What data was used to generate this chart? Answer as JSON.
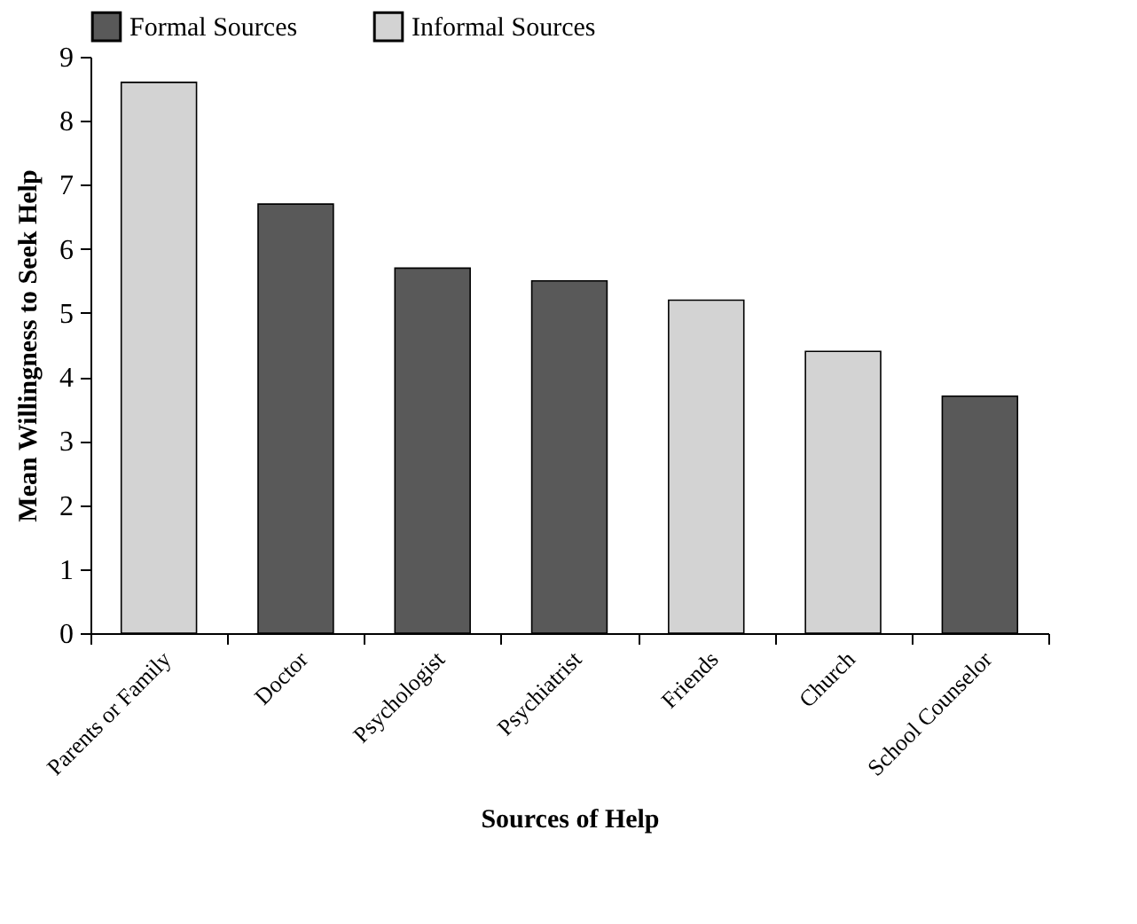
{
  "chart_data": {
    "type": "bar",
    "xlabel": "Sources of Help",
    "ylabel": "Mean Willingness to Seek Help",
    "categories": [
      "Parents or Family",
      "Doctor",
      "Psychologist",
      "Psychiatrist",
      "Friends",
      "Church",
      "School Counselor"
    ],
    "series": [
      {
        "name": "Formal Sources",
        "color": "#595959",
        "values": [
          null,
          6.7,
          5.7,
          5.5,
          null,
          null,
          3.7
        ]
      },
      {
        "name": "Informal Sources",
        "color": "#d3d3d3",
        "values": [
          8.6,
          null,
          null,
          null,
          5.2,
          4.4,
          null
        ]
      }
    ],
    "ylim": [
      0,
      9
    ],
    "yticks": [
      0,
      1,
      2,
      3,
      4,
      5,
      6,
      7,
      8,
      9
    ],
    "grid": false,
    "legend": "top left"
  }
}
